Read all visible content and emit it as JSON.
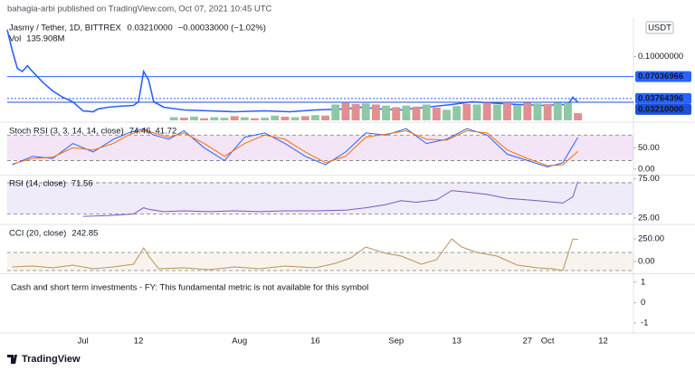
{
  "header": {
    "text": "bahagia-arbi published on TradingView.com, Oct 07, 2021 10:45 UTC"
  },
  "footer": {
    "brand": "TradingView"
  },
  "chart_data": [
    {
      "type": "line",
      "title": "Jasmy / Tether, 1D, BITTREX",
      "legend_price": "0.03210000",
      "legend_change": "−0.00033000 (−1.02%)",
      "legend_volume": "135.908M",
      "unit_badge": "USDT",
      "xlim": [
        -15,
        109
      ],
      "xticks": [
        {
          "value": 0,
          "label": "Jul"
        },
        {
          "value": 11,
          "label": "12"
        },
        {
          "value": 31,
          "label": "Aug"
        },
        {
          "value": 46,
          "label": "16"
        },
        {
          "value": 62,
          "label": "Sep"
        },
        {
          "value": 74,
          "label": "13"
        },
        {
          "value": 88,
          "label": "27"
        },
        {
          "value": 92,
          "label": "Oct"
        },
        {
          "value": 103,
          "label": "12"
        }
      ],
      "ylim": [
        0.005,
        0.155
      ],
      "yticks": [
        {
          "value": 0.1,
          "label": "0.10000000"
        }
      ],
      "y2lim": [
        0,
        1900
      ],
      "price_lines": [
        {
          "value": 0.07036966,
          "label": "0.07036966",
          "color": "#2962ff",
          "dashed": false
        },
        {
          "value": 0.03764396,
          "label": "0.03764396",
          "color": "#2962ff",
          "dashed": true
        },
        {
          "value": 0.0321,
          "label": "0.03210000",
          "color": "#1e4fd8",
          "dashed": false
        }
      ],
      "x": [
        -15,
        -14,
        -13,
        -12,
        -11,
        -10,
        -8,
        -7,
        -6,
        -4,
        -2,
        0,
        2,
        3,
        5,
        7,
        10,
        11,
        12,
        13,
        14,
        16,
        20,
        25,
        30,
        36,
        41,
        46,
        52,
        55,
        59,
        63,
        68,
        73,
        77,
        80,
        86,
        91,
        96,
        97,
        98
      ],
      "series": [
        {
          "color": "#2962ff",
          "values": [
            0.1404,
            0.109,
            0.0825,
            0.078,
            0.0865,
            0.078,
            0.062,
            0.0556,
            0.0489,
            0.0394,
            0.0327,
            0.0192,
            0.0179,
            0.022,
            0.0246,
            0.026,
            0.0273,
            0.0327,
            0.078,
            0.065,
            0.0327,
            0.0246,
            0.0206,
            0.0192,
            0.0179,
            0.0192,
            0.0179,
            0.0206,
            0.022,
            0.0246,
            0.022,
            0.0206,
            0.0246,
            0.0287,
            0.0327,
            0.0314,
            0.0287,
            0.0273,
            0.0287,
            0.0394,
            0.0321
          ]
        },
        {
          "type": "bar",
          "name": "Vol",
          "axis": "y2",
          "x": [
            18,
            20,
            22,
            24,
            26,
            28,
            30,
            32,
            34,
            36,
            38,
            40,
            42,
            44,
            46,
            48,
            50,
            52,
            54,
            56,
            58,
            60,
            62,
            64,
            66,
            68,
            70,
            72,
            74,
            76,
            78,
            80,
            82,
            84,
            86,
            88,
            90,
            92,
            94,
            96,
            98
          ],
          "values": [
            60,
            50,
            70,
            40,
            60,
            50,
            80,
            60,
            40,
            50,
            90,
            70,
            60,
            80,
            100,
            90,
            300,
            330,
            310,
            320,
            300,
            280,
            250,
            280,
            260,
            300,
            240,
            200,
            270,
            310,
            300,
            340,
            300,
            330,
            290,
            340,
            320,
            310,
            350,
            330,
            135.908
          ],
          "colors": [
            "#8fc9a3",
            "#e09090",
            "#8fc9a3",
            "#e09090",
            "#8fc9a3",
            "#8fc9a3",
            "#e09090",
            "#8fc9a3",
            "#e09090",
            "#8fc9a3",
            "#8fc9a3",
            "#e09090",
            "#8fc9a3",
            "#e09090",
            "#8fc9a3",
            "#e09090",
            "#8fc9a3",
            "#e09090",
            "#e09090",
            "#8fc9a3",
            "#e09090",
            "#8fc9a3",
            "#e09090",
            "#8fc9a3",
            "#e09090",
            "#8fc9a3",
            "#e09090",
            "#8fc9a3",
            "#8fc9a3",
            "#e09090",
            "#8fc9a3",
            "#e09090",
            "#8fc9a3",
            "#e09090",
            "#8fc9a3",
            "#e09090",
            "#8fc9a3",
            "#e09090",
            "#8fc9a3",
            "#8fc9a3",
            "#e09090"
          ]
        }
      ]
    },
    {
      "type": "line",
      "title": "Stoch RSI (3, 3, 14, 14, close)",
      "ylim": [
        -11,
        106
      ],
      "yticks": [
        {
          "value": 50,
          "label": "50.00"
        },
        {
          "value": 0,
          "label": "0.00"
        }
      ],
      "band": [
        20,
        80
      ],
      "band_color": "#9c27b0",
      "x": [
        -14,
        -10,
        -6,
        -2,
        2,
        6,
        9,
        12,
        14,
        17,
        20,
        24,
        28,
        32,
        36,
        40,
        44,
        48,
        52,
        56,
        60,
        64,
        68,
        72,
        76,
        80,
        84,
        88,
        92,
        95,
        98
      ],
      "series": [
        {
          "color": "#2962ff",
          "values": [
            10,
            30,
            25,
            60,
            40,
            70,
            85,
            95,
            80,
            70,
            90,
            50,
            20,
            75,
            85,
            60,
            30,
            10,
            40,
            85,
            80,
            95,
            60,
            70,
            95,
            80,
            35,
            20,
            5,
            15,
            74.46
          ]
        },
        {
          "color": "#ff6d00",
          "values": [
            12,
            25,
            28,
            50,
            45,
            60,
            80,
            92,
            85,
            75,
            85,
            60,
            30,
            60,
            80,
            70,
            40,
            15,
            30,
            75,
            82,
            90,
            70,
            68,
            90,
            85,
            45,
            25,
            8,
            10,
            41.72
          ]
        }
      ]
    },
    {
      "type": "line",
      "title": "RSI (14, close)",
      "ylim": [
        19,
        78
      ],
      "yticks": [
        {
          "value": 75,
          "label": "75.00"
        },
        {
          "value": 25,
          "label": "25.00"
        }
      ],
      "band": [
        30,
        70
      ],
      "band_color": "#7e57c2",
      "x": [
        0,
        5,
        10,
        12,
        13,
        16,
        20,
        25,
        30,
        35,
        40,
        46,
        52,
        56,
        60,
        63,
        66,
        70,
        73,
        76,
        80,
        84,
        88,
        92,
        95,
        97,
        98
      ],
      "series": [
        {
          "color": "#7e57c2",
          "values": [
            27,
            28,
            30,
            38,
            36,
            33,
            34,
            33,
            34,
            33,
            34,
            34,
            35,
            38,
            42,
            47,
            45,
            48,
            60,
            58,
            55,
            50,
            48,
            46,
            44,
            52,
            71.56
          ]
        }
      ]
    },
    {
      "type": "line",
      "title": "CCI (20, close)",
      "ylim": [
        -110,
        390
      ],
      "yticks": [
        {
          "value": 250,
          "label": "250.00"
        },
        {
          "value": 0,
          "label": "0.00"
        }
      ],
      "band": [
        -100,
        100
      ],
      "band_color": "#c9a46a",
      "x": [
        -14,
        -10,
        -6,
        -2,
        2,
        6,
        10,
        12,
        13,
        15,
        20,
        25,
        30,
        35,
        40,
        46,
        50,
        53,
        56,
        60,
        63,
        67,
        70,
        73,
        75,
        78,
        82,
        86,
        90,
        93,
        95,
        97,
        98
      ],
      "series": [
        {
          "color": "#b8935a",
          "values": [
            -60,
            -50,
            -70,
            -40,
            -80,
            -60,
            -30,
            150,
            60,
            -80,
            -70,
            -90,
            -60,
            -80,
            -50,
            -70,
            -20,
            40,
            160,
            90,
            60,
            -30,
            20,
            250,
            160,
            100,
            60,
            -40,
            -70,
            -80,
            -100,
            250,
            242.85
          ]
        }
      ]
    },
    {
      "type": "text",
      "message": "Cash and short term investments - FY: This fundamental metric is not available for this symbol",
      "ylim": [
        -1.4,
        1.3
      ],
      "yticks": [
        1,
        0,
        -1
      ]
    }
  ]
}
